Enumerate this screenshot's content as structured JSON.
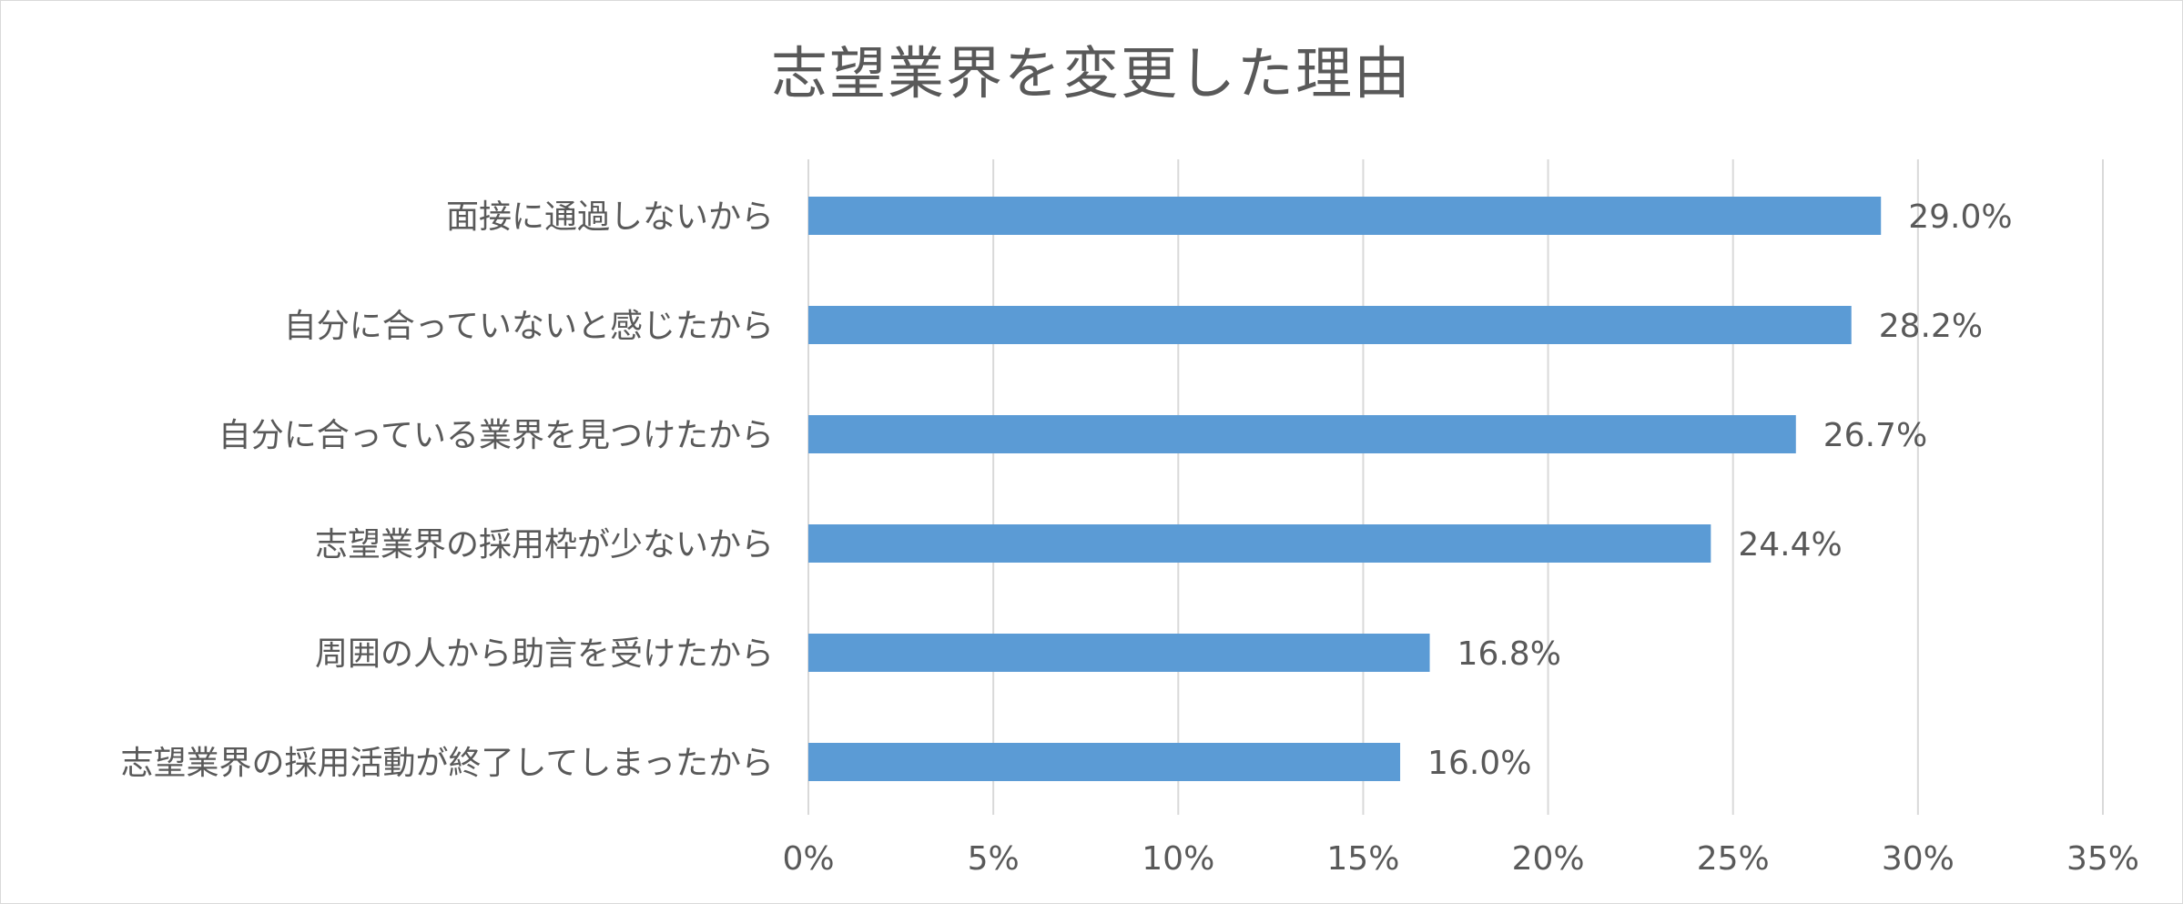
{
  "chart_data": {
    "type": "bar",
    "orientation": "horizontal",
    "title": "志望業界を変更した理由",
    "categories": [
      "面接に通過しないから",
      "自分に合っていないと感じたから",
      "自分に合っている業界を見つけたから",
      "志望業界の採用枠が少ないから",
      "周囲の人から助言を受けたから",
      "志望業界の採用活動が終了してしまったから"
    ],
    "values": [
      29.0,
      28.2,
      26.7,
      24.4,
      16.8,
      16.0
    ],
    "value_labels": [
      "29.0%",
      "28.2%",
      "26.7%",
      "24.4%",
      "16.8%",
      "16.0%"
    ],
    "xticks": [
      0,
      5,
      10,
      15,
      20,
      25,
      30,
      35
    ],
    "xtick_labels": [
      "0%",
      "5%",
      "10%",
      "15%",
      "20%",
      "25%",
      "30%",
      "35%"
    ],
    "xlim": [
      0,
      35
    ],
    "grid": true,
    "legend": "none",
    "bar_color": "#5b9bd5",
    "grid_color": "#d9d9d9",
    "text_color": "#595959"
  }
}
